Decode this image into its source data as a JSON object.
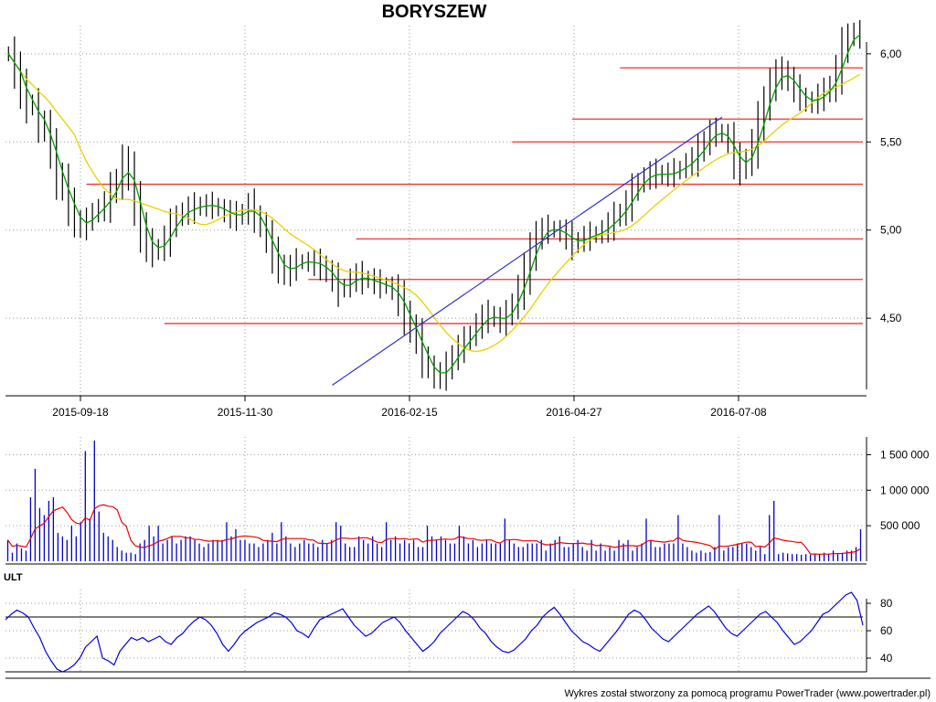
{
  "chart_data": [
    {
      "type": "ohlc",
      "title": "BORYSZEW",
      "x_ticks": [
        "2015-09-18",
        "2015-11-30",
        "2016-02-15",
        "2016-04-27",
        "2016-07-08"
      ],
      "y_ticks": [
        "4,50",
        "5,00",
        "5,50",
        "6,00"
      ],
      "ylim": [
        4.06,
        6.16
      ],
      "grid": true,
      "close": [
        6.0,
        5.9,
        5.8,
        5.72,
        5.7,
        5.6,
        5.58,
        5.45,
        5.3,
        5.25,
        5.15,
        5.05,
        5.02,
        5.05,
        5.1,
        5.12,
        5.15,
        5.22,
        5.28,
        5.38,
        5.32,
        5.15,
        5.0,
        4.92,
        4.88,
        4.9,
        4.95,
        5.02,
        5.08,
        5.1,
        5.12,
        5.13,
        5.14,
        5.14,
        5.14,
        5.12,
        5.1,
        5.08,
        5.08,
        5.1,
        5.14,
        5.08,
        5.02,
        4.95,
        4.86,
        4.8,
        4.75,
        4.79,
        4.82,
        4.82,
        4.82,
        4.81,
        4.8,
        4.76,
        4.72,
        4.66,
        4.68,
        4.72,
        4.74,
        4.72,
        4.72,
        4.7,
        4.69,
        4.68,
        4.66,
        4.6,
        4.52,
        4.44,
        4.38,
        4.28,
        4.22,
        4.17,
        4.18,
        4.22,
        4.28,
        4.33,
        4.37,
        4.41,
        4.46,
        4.5,
        4.52,
        4.5,
        4.48,
        4.52,
        4.58,
        4.66,
        4.76,
        4.86,
        4.96,
        5.0,
        5.01,
        5.0,
        4.99,
        4.96,
        4.92,
        4.94,
        4.96,
        4.97,
        4.98,
        5.0,
        5.03,
        5.07,
        5.1,
        5.15,
        5.22,
        5.27,
        5.3,
        5.32,
        5.32,
        5.31,
        5.32,
        5.33,
        5.35,
        5.38,
        5.4,
        5.45,
        5.5,
        5.55,
        5.56,
        5.54,
        5.5,
        5.4,
        5.35,
        5.4,
        5.48,
        5.6,
        5.72,
        5.82,
        5.88,
        5.9,
        5.85,
        5.8,
        5.76,
        5.72,
        5.73,
        5.76,
        5.78,
        5.82,
        5.9,
        6.02,
        6.1,
        6.12,
        6.1
      ],
      "series": [
        {
          "name": "",
          "type": "ma_short",
          "color": "#00a000"
        },
        {
          "name": "",
          "type": "ma_long",
          "color": "#e6d200"
        }
      ],
      "support_levels": [
        {
          "value": 4.47,
          "from_bar": 26
        },
        {
          "value": 4.72,
          "from_bar": 50
        },
        {
          "value": 4.95,
          "from_bar": 58
        },
        {
          "value": 5.26,
          "from_bar": 13
        },
        {
          "value": 5.5,
          "from_bar": 84
        },
        {
          "value": 5.63,
          "from_bar": 94
        },
        {
          "value": 5.92,
          "from_bar": 102
        }
      ],
      "trendline": {
        "from": {
          "bar": 54,
          "value": 4.12
        },
        "to": {
          "bar": 119,
          "value": 5.64
        },
        "color": "#3333cc"
      },
      "level_color": "#ee3333",
      "bar_color": "#000000"
    },
    {
      "type": "bar",
      "series_name": "",
      "y_ticks": [
        "500 000",
        "1 000 000",
        "1 500 000"
      ],
      "ylim": [
        0,
        1750000
      ],
      "volume": [
        300000,
        120000,
        250000,
        180000,
        150000,
        900000,
        1300000,
        750000,
        650000,
        850000,
        900000,
        400000,
        350000,
        300000,
        500000,
        350000,
        550000,
        1550000,
        600000,
        1700000,
        700000,
        400000,
        350000,
        300000,
        200000,
        150000,
        120000,
        120000,
        100000,
        250000,
        300000,
        500000,
        350000,
        500000,
        250000,
        300000,
        350000,
        250000,
        300000,
        350000,
        350000,
        300000,
        250000,
        200000,
        250000,
        300000,
        300000,
        300000,
        550000,
        350000,
        450000,
        300000,
        300000,
        250000,
        250000,
        200000,
        250000,
        300000,
        400000,
        250000,
        550000,
        350000,
        250000,
        200000,
        250000,
        300000,
        250000,
        250000,
        200000,
        300000,
        250000,
        300000,
        550000,
        500000,
        250000,
        200000,
        200000,
        350000,
        300000,
        250000,
        350000,
        250000,
        200000,
        550000,
        300000,
        350000,
        250000,
        300000,
        250000,
        300000,
        200000,
        200000,
        500000,
        350000,
        300000,
        350000,
        300000,
        250000,
        250000,
        500000,
        350000,
        250000,
        300000,
        200000,
        250000,
        300000,
        250000,
        250000,
        250000,
        600000,
        300000,
        250000,
        200000,
        200000,
        250000,
        250000,
        250000,
        300000,
        150000,
        250000,
        300000,
        350000,
        200000,
        200000,
        250000,
        300000,
        200000,
        150000,
        300000,
        150000,
        250000,
        150000,
        200000,
        150000,
        300000,
        250000,
        300000,
        150000,
        200000,
        250000,
        600000,
        300000,
        200000,
        200000,
        250000,
        250000,
        250000,
        650000,
        250000,
        200000,
        150000,
        120000,
        150000,
        120000,
        130000,
        200000,
        650000,
        150000,
        200000,
        200000,
        250000,
        250000,
        250000,
        200000,
        150000,
        200000,
        100000,
        650000,
        850000,
        100000,
        120000,
        110000,
        100000,
        100000,
        90000,
        100000,
        90000,
        100000,
        100000,
        120000,
        100000,
        150000,
        100000,
        120000,
        150000,
        150000,
        200000,
        450000
      ],
      "avg_line_color": "#ee0000",
      "bar_color": "#0000cc"
    },
    {
      "type": "line",
      "title": "ULT",
      "y_ticks": [
        "40",
        "60",
        "80"
      ],
      "ylim": [
        30,
        90
      ],
      "reference_level": 70,
      "values": [
        68,
        72,
        75,
        73,
        70,
        62,
        55,
        45,
        38,
        32,
        30,
        32,
        35,
        40,
        48,
        52,
        56,
        40,
        38,
        35,
        45,
        50,
        55,
        53,
        55,
        52,
        54,
        56,
        52,
        50,
        55,
        58,
        63,
        67,
        70,
        68,
        64,
        58,
        50,
        45,
        50,
        56,
        60,
        63,
        66,
        68,
        70,
        73,
        72,
        70,
        66,
        60,
        58,
        55,
        62,
        68,
        70,
        72,
        74,
        76,
        70,
        64,
        60,
        56,
        58,
        62,
        66,
        68,
        70,
        66,
        60,
        55,
        50,
        45,
        48,
        52,
        58,
        62,
        66,
        70,
        74,
        72,
        68,
        62,
        58,
        52,
        48,
        45,
        44,
        46,
        50,
        54,
        60,
        64,
        70,
        74,
        77,
        72,
        66,
        60,
        56,
        52,
        50,
        47,
        45,
        50,
        55,
        60,
        66,
        72,
        75,
        73,
        68,
        62,
        58,
        54,
        52,
        56,
        60,
        64,
        68,
        72,
        75,
        78,
        74,
        68,
        62,
        58,
        56,
        60,
        64,
        68,
        72,
        74,
        70,
        66,
        60,
        55,
        50,
        52,
        56,
        60,
        66,
        72,
        74,
        78,
        82,
        86,
        88,
        82,
        64
      ],
      "line_color": "#0000dd"
    }
  ],
  "footer": "Wykres został stworzony za pomocą programu PowerTrader (www.powertrader.pl)"
}
